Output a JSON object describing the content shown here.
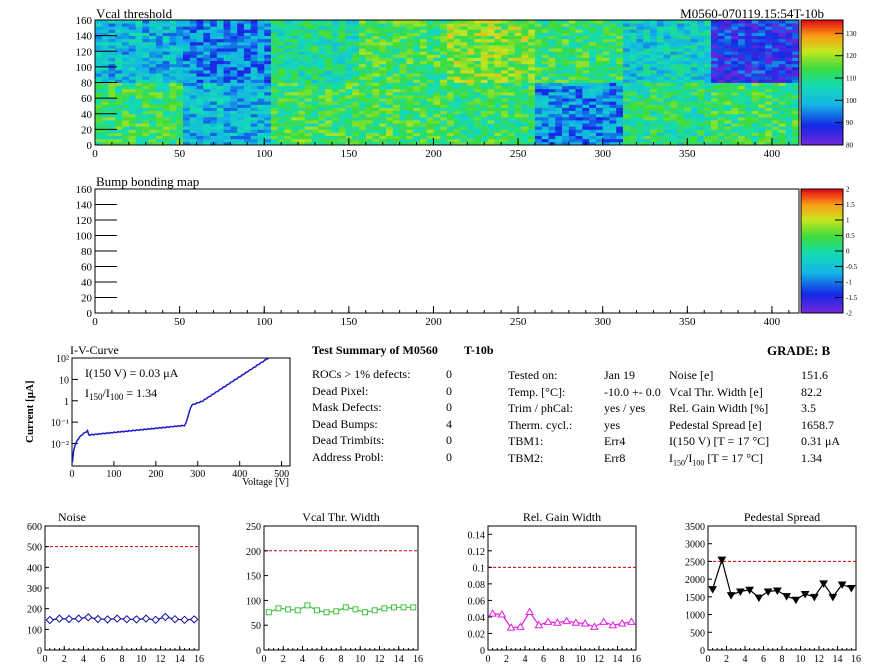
{
  "heatmap": {
    "title": "Vcal threshold",
    "module_id": "M0560-070119.15:54T-10b",
    "x_ticks": [
      0,
      50,
      100,
      150,
      200,
      250,
      300,
      350,
      400
    ],
    "y_ticks": [
      0,
      20,
      40,
      60,
      80,
      100,
      120,
      140,
      160
    ],
    "colorbar_ticks": [
      80,
      90,
      100,
      110,
      120,
      130
    ],
    "roc_means_top": [
      100,
      95,
      108,
      113,
      118,
      112,
      103,
      88
    ],
    "roc_means_bottom": [
      112,
      100,
      113,
      113,
      112,
      96,
      110,
      112
    ]
  },
  "bump": {
    "title": "Bump bonding map",
    "x_ticks": [
      0,
      50,
      100,
      150,
      200,
      250,
      300,
      350,
      400
    ],
    "y_ticks": [
      0,
      20,
      40,
      60,
      80,
      100,
      120,
      140,
      160
    ],
    "colorbar_ticks": [
      "2",
      "1.5",
      "1",
      "0.5",
      "0",
      "-0.5",
      "-1",
      "-1.5",
      "-2"
    ]
  },
  "iv": {
    "title": "I-V-Curve",
    "ylabel": "Current [μA]",
    "xlabel": "Voltage [V]",
    "x_ticks": [
      0,
      100,
      200,
      300,
      400,
      500
    ],
    "y_ticks": [
      "10²",
      "10",
      "1",
      "10⁻¹",
      "10⁻²"
    ],
    "ann_line1": "I(150 V) = 0.03 μA",
    "ann_line2_a": "I",
    "ann_line2_sub1": "150",
    "ann_line2_b": "/I",
    "ann_line2_sub2": "100",
    "ann_line2_c": " = 1.34"
  },
  "summary": {
    "title": "Test Summary of M0560",
    "temp_code": "T-10b",
    "grade": "GRADE:  B",
    "defects": [
      {
        "label": "ROCs > 1% defects:",
        "value": "0"
      },
      {
        "label": "Dead Pixel:",
        "value": "0"
      },
      {
        "label": "Mask Defects:",
        "value": "0"
      },
      {
        "label": "Dead Bumps:",
        "value": "4"
      },
      {
        "label": "Dead Trimbits:",
        "value": "0"
      },
      {
        "label": "Address Probl:",
        "value": "0"
      }
    ],
    "tested_on_label": "Tested on:",
    "tested_on_value": "Jan 19",
    "temp_label": "Temp. [°C]:",
    "temp_value": "-10.0 +- 0.0",
    "trim_label": "Trim / phCal:",
    "trim_value": "yes / yes",
    "therm_label": "Therm. cycl.:",
    "therm_value": "yes",
    "tbm1_label": "TBM1:",
    "tbm1_value": "Err4",
    "tbm2_label": "TBM2:",
    "tbm2_value": "Err8",
    "noise_label": "Noise [e]",
    "noise_value": "151.6",
    "vcal_label": "Vcal Thr. Width [e]",
    "vcal_value": "82.2",
    "gain_label": "Rel. Gain Width [%]",
    "gain_value": "3.5",
    "ped_label": "Pedestal Spread [e]",
    "ped_value": "1658.7",
    "i150_label": "I(150 V)  [T = 17 °C]",
    "i150_value": "0.31 μA",
    "ratio_label_a": "I",
    "ratio_label_sub1": "150",
    "ratio_label_b": "/I",
    "ratio_label_sub2": "100",
    "ratio_label_c": "  [T = 17 °C]",
    "ratio_value": "1.34"
  },
  "chart_data": [
    {
      "type": "line",
      "title": "Noise",
      "color": "#1010a0",
      "marker": "diamond",
      "x": [
        0.5,
        1.5,
        2.5,
        3.5,
        4.5,
        5.5,
        6.5,
        7.5,
        8.5,
        9.5,
        10.5,
        11.5,
        12.5,
        13.5,
        14.5,
        15.5
      ],
      "values": [
        145,
        152,
        150,
        152,
        158,
        150,
        148,
        152,
        149,
        148,
        152,
        146,
        160,
        149,
        146,
        148
      ],
      "xlim": [
        0,
        16
      ],
      "ylim": [
        0,
        600
      ],
      "threshold": 500,
      "x_ticks": [
        0,
        2,
        4,
        6,
        8,
        10,
        12,
        14,
        16
      ],
      "y_ticks": [
        0,
        100,
        200,
        300,
        400,
        500,
        600
      ]
    },
    {
      "type": "line",
      "title": "Vcal Thr. Width",
      "color": "#40c040",
      "marker": "square",
      "x": [
        0.5,
        1.5,
        2.5,
        3.5,
        4.5,
        5.5,
        6.5,
        7.5,
        8.5,
        9.5,
        10.5,
        11.5,
        12.5,
        13.5,
        14.5,
        15.5
      ],
      "values": [
        76,
        84,
        82,
        80,
        90,
        80,
        76,
        78,
        86,
        82,
        76,
        80,
        84,
        86,
        86,
        86
      ],
      "xlim": [
        0,
        16
      ],
      "ylim": [
        0,
        250
      ],
      "threshold": 200,
      "x_ticks": [
        0,
        2,
        4,
        6,
        8,
        10,
        12,
        14,
        16
      ],
      "y_ticks": [
        0,
        50,
        100,
        150,
        200,
        250
      ]
    },
    {
      "type": "line",
      "title": "Rel. Gain Width",
      "color": "#e020e0",
      "marker": "triangle",
      "x": [
        0.5,
        1.5,
        2.5,
        3.5,
        4.5,
        5.5,
        6.5,
        7.5,
        8.5,
        9.5,
        10.5,
        11.5,
        12.5,
        13.5,
        14.5,
        15.5
      ],
      "values": [
        0.044,
        0.043,
        0.027,
        0.028,
        0.046,
        0.03,
        0.034,
        0.033,
        0.035,
        0.033,
        0.032,
        0.028,
        0.034,
        0.03,
        0.032,
        0.034
      ],
      "xlim": [
        0,
        16
      ],
      "ylim": [
        0,
        0.15
      ],
      "threshold": 0.1,
      "x_ticks": [
        0,
        2,
        4,
        6,
        8,
        10,
        12,
        14,
        16
      ],
      "y_ticks": [
        0,
        0.02,
        0.04,
        0.06,
        0.08,
        0.1,
        0.12,
        0.14
      ]
    },
    {
      "type": "line",
      "title": "Pedestal Spread",
      "color": "#000000",
      "marker": "triangle-down",
      "x": [
        0.5,
        1.5,
        2.5,
        3.5,
        4.5,
        5.5,
        6.5,
        7.5,
        8.5,
        9.5,
        10.5,
        11.5,
        12.5,
        13.5,
        14.5,
        15.5
      ],
      "values": [
        1720,
        2550,
        1550,
        1650,
        1700,
        1480,
        1650,
        1680,
        1520,
        1420,
        1580,
        1500,
        1880,
        1500,
        1850,
        1750
      ],
      "xlim": [
        0,
        16
      ],
      "ylim": [
        0,
        3500
      ],
      "threshold": 2500,
      "x_ticks": [
        0,
        2,
        4,
        6,
        8,
        10,
        12,
        14,
        16
      ],
      "y_ticks": [
        0,
        500,
        1000,
        1500,
        2000,
        2500,
        3000,
        3500
      ]
    }
  ]
}
